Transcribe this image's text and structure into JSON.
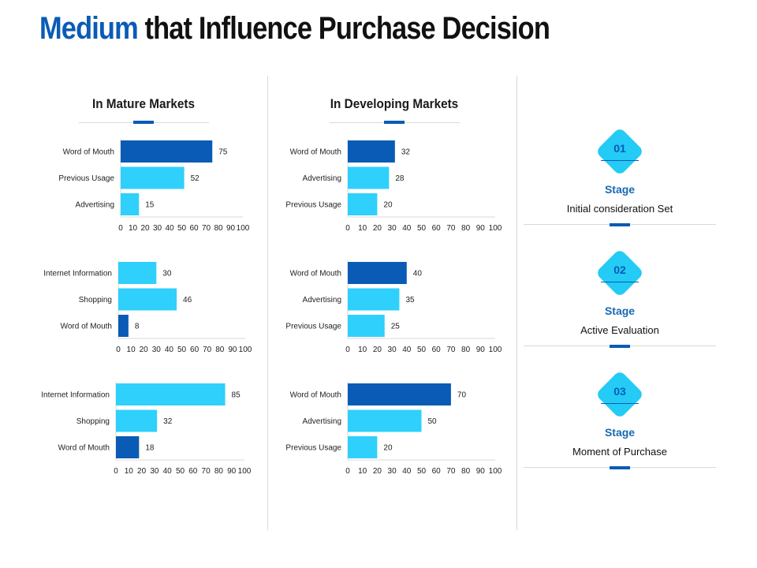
{
  "title": {
    "highlight": "Medium",
    "rest": "that Influence Purchase Decision"
  },
  "columns": {
    "mature": "In Mature Markets",
    "developing": "In Developing Markets"
  },
  "colors": {
    "dark_bar": "#0a5bb5",
    "light_bar": "#2fd0fb",
    "accent": "#0a5bb5",
    "diamond": "#23cbf5"
  },
  "chart_data": [
    {
      "type": "bar",
      "orientation": "horizontal",
      "title": "In Mature Markets",
      "xlim": [
        0,
        100
      ],
      "ticks": [
        0,
        10,
        20,
        30,
        40,
        50,
        60,
        70,
        80,
        90,
        100
      ],
      "categories": [
        "Word of Mouth",
        "Previous Usage",
        "Advertising"
      ],
      "values": [
        75,
        52,
        15
      ],
      "highlight_index": 0
    },
    {
      "type": "bar",
      "orientation": "horizontal",
      "title": "In Developing Markets",
      "xlim": [
        0,
        100
      ],
      "ticks": [
        0,
        10,
        20,
        30,
        40,
        50,
        60,
        70,
        80,
        90,
        100
      ],
      "categories": [
        "Word of Mouth",
        "Advertising",
        "Previous Usage"
      ],
      "values": [
        32,
        28,
        20
      ],
      "highlight_index": 0
    },
    {
      "type": "bar",
      "orientation": "horizontal",
      "xlim": [
        0,
        100
      ],
      "ticks": [
        0,
        10,
        20,
        30,
        40,
        50,
        60,
        70,
        80,
        90,
        100
      ],
      "categories": [
        "Internet Information",
        "Shopping",
        "Word of Mouth"
      ],
      "values": [
        30,
        46,
        8
      ],
      "highlight_index": 2
    },
    {
      "type": "bar",
      "orientation": "horizontal",
      "xlim": [
        0,
        100
      ],
      "ticks": [
        0,
        10,
        20,
        30,
        40,
        50,
        60,
        70,
        80,
        90,
        100
      ],
      "categories": [
        "Word of Mouth",
        "Advertising",
        "Previous Usage"
      ],
      "values": [
        40,
        35,
        25
      ],
      "highlight_index": 0
    },
    {
      "type": "bar",
      "orientation": "horizontal",
      "xlim": [
        0,
        100
      ],
      "ticks": [
        0,
        10,
        20,
        30,
        40,
        50,
        60,
        70,
        80,
        90,
        100
      ],
      "categories": [
        "Internet Information",
        "Shopping",
        "Word of Mouth"
      ],
      "values": [
        85,
        32,
        18
      ],
      "highlight_index": 2
    },
    {
      "type": "bar",
      "orientation": "horizontal",
      "xlim": [
        0,
        100
      ],
      "ticks": [
        0,
        10,
        20,
        30,
        40,
        50,
        60,
        70,
        80,
        90,
        100
      ],
      "categories": [
        "Word of Mouth",
        "Advertising",
        "Previous Usage"
      ],
      "values": [
        70,
        50,
        20
      ],
      "highlight_index": 0
    }
  ],
  "stages": [
    {
      "number": "01",
      "label": "Stage",
      "description": "Initial consideration Set"
    },
    {
      "number": "02",
      "label": "Stage",
      "description": "Active Evaluation"
    },
    {
      "number": "03",
      "label": "Stage",
      "description": "Moment of Purchase"
    }
  ]
}
